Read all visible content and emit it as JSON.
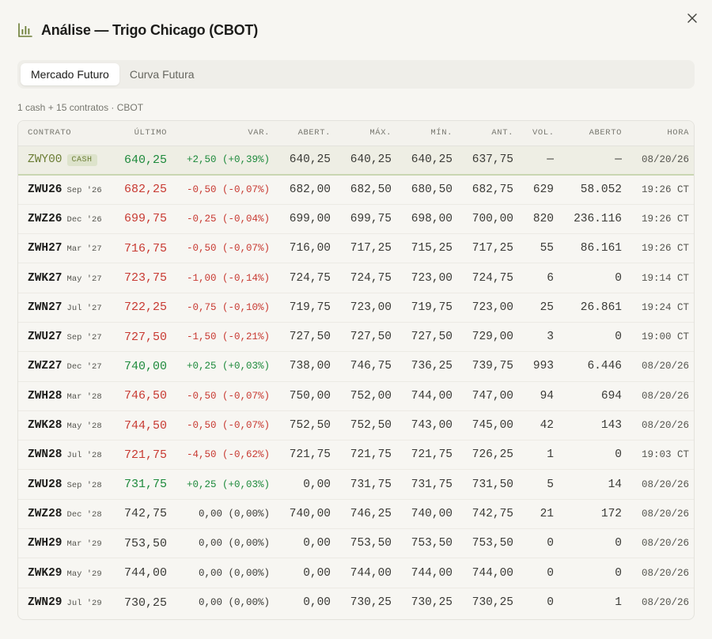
{
  "title": "Análise — Trigo Chicago (CBOT)",
  "tabs": [
    {
      "label": "Mercado Futuro",
      "active": true
    },
    {
      "label": "Curva Futura",
      "active": false
    }
  ],
  "meta": "1 cash + 15 contratos · CBOT",
  "columns": [
    "CONTRATO",
    "ÚLTIMO",
    "VAR.",
    "ABERT.",
    "MÁX.",
    "MÍN.",
    "ANT.",
    "VOL.",
    "ABERTO",
    "HORA"
  ],
  "colors": {
    "up": "#1e8a3c",
    "down": "#c83a32",
    "cash_accent": "#6b7d35"
  },
  "rows": [
    {
      "code": "ZWY00",
      "month": "",
      "cash": true,
      "cash_label": "CASH",
      "last": "640,25",
      "change": "+2,50 (+0,39%)",
      "dir": "up",
      "open": "640,25",
      "high": "640,25",
      "low": "640,25",
      "prev": "637,75",
      "vol": "—",
      "oi": "—",
      "time": "08/20/26"
    },
    {
      "code": "ZWU26",
      "month": "Sep '26",
      "last": "682,25",
      "change": "-0,50 (-0,07%)",
      "dir": "down",
      "open": "682,00",
      "high": "682,50",
      "low": "680,50",
      "prev": "682,75",
      "vol": "629",
      "oi": "58.052",
      "time": "19:26 CT"
    },
    {
      "code": "ZWZ26",
      "month": "Dec '26",
      "last": "699,75",
      "change": "-0,25 (-0,04%)",
      "dir": "down",
      "open": "699,00",
      "high": "699,75",
      "low": "698,00",
      "prev": "700,00",
      "vol": "820",
      "oi": "236.116",
      "time": "19:26 CT"
    },
    {
      "code": "ZWH27",
      "month": "Mar '27",
      "last": "716,75",
      "change": "-0,50 (-0,07%)",
      "dir": "down",
      "open": "716,00",
      "high": "717,25",
      "low": "715,25",
      "prev": "717,25",
      "vol": "55",
      "oi": "86.161",
      "time": "19:26 CT"
    },
    {
      "code": "ZWK27",
      "month": "May '27",
      "last": "723,75",
      "change": "-1,00 (-0,14%)",
      "dir": "down",
      "open": "724,75",
      "high": "724,75",
      "low": "723,00",
      "prev": "724,75",
      "vol": "6",
      "oi": "0",
      "time": "19:14 CT"
    },
    {
      "code": "ZWN27",
      "month": "Jul '27",
      "last": "722,25",
      "change": "-0,75 (-0,10%)",
      "dir": "down",
      "open": "719,75",
      "high": "723,00",
      "low": "719,75",
      "prev": "723,00",
      "vol": "25",
      "oi": "26.861",
      "time": "19:24 CT"
    },
    {
      "code": "ZWU27",
      "month": "Sep '27",
      "last": "727,50",
      "change": "-1,50 (-0,21%)",
      "dir": "down",
      "open": "727,50",
      "high": "727,50",
      "low": "727,50",
      "prev": "729,00",
      "vol": "3",
      "oi": "0",
      "time": "19:00 CT"
    },
    {
      "code": "ZWZ27",
      "month": "Dec '27",
      "last": "740,00",
      "change": "+0,25 (+0,03%)",
      "dir": "up",
      "open": "738,00",
      "high": "746,75",
      "low": "736,25",
      "prev": "739,75",
      "vol": "993",
      "oi": "6.446",
      "time": "08/20/26"
    },
    {
      "code": "ZWH28",
      "month": "Mar '28",
      "last": "746,50",
      "change": "-0,50 (-0,07%)",
      "dir": "down",
      "open": "750,00",
      "high": "752,00",
      "low": "744,00",
      "prev": "747,00",
      "vol": "94",
      "oi": "694",
      "time": "08/20/26"
    },
    {
      "code": "ZWK28",
      "month": "May '28",
      "last": "744,50",
      "change": "-0,50 (-0,07%)",
      "dir": "down",
      "open": "752,50",
      "high": "752,50",
      "low": "743,00",
      "prev": "745,00",
      "vol": "42",
      "oi": "143",
      "time": "08/20/26"
    },
    {
      "code": "ZWN28",
      "month": "Jul '28",
      "last": "721,75",
      "change": "-4,50 (-0,62%)",
      "dir": "down",
      "open": "721,75",
      "high": "721,75",
      "low": "721,75",
      "prev": "726,25",
      "vol": "1",
      "oi": "0",
      "time": "19:03 CT"
    },
    {
      "code": "ZWU28",
      "month": "Sep '28",
      "last": "731,75",
      "change": "+0,25 (+0,03%)",
      "dir": "up",
      "open": "0,00",
      "high": "731,75",
      "low": "731,75",
      "prev": "731,50",
      "vol": "5",
      "oi": "14",
      "time": "08/20/26"
    },
    {
      "code": "ZWZ28",
      "month": "Dec '28",
      "last": "742,75",
      "change": "0,00 (0,00%)",
      "dir": "flat",
      "open": "740,00",
      "high": "746,25",
      "low": "740,00",
      "prev": "742,75",
      "vol": "21",
      "oi": "172",
      "time": "08/20/26"
    },
    {
      "code": "ZWH29",
      "month": "Mar '29",
      "last": "753,50",
      "change": "0,00 (0,00%)",
      "dir": "flat",
      "open": "0,00",
      "high": "753,50",
      "low": "753,50",
      "prev": "753,50",
      "vol": "0",
      "oi": "0",
      "time": "08/20/26"
    },
    {
      "code": "ZWK29",
      "month": "May '29",
      "last": "744,00",
      "change": "0,00 (0,00%)",
      "dir": "flat",
      "open": "0,00",
      "high": "744,00",
      "low": "744,00",
      "prev": "744,00",
      "vol": "0",
      "oi": "0",
      "time": "08/20/26"
    },
    {
      "code": "ZWN29",
      "month": "Jul '29",
      "last": "730,25",
      "change": "0,00 (0,00%)",
      "dir": "flat",
      "open": "0,00",
      "high": "730,25",
      "low": "730,25",
      "prev": "730,25",
      "vol": "0",
      "oi": "1",
      "time": "08/20/26"
    }
  ]
}
